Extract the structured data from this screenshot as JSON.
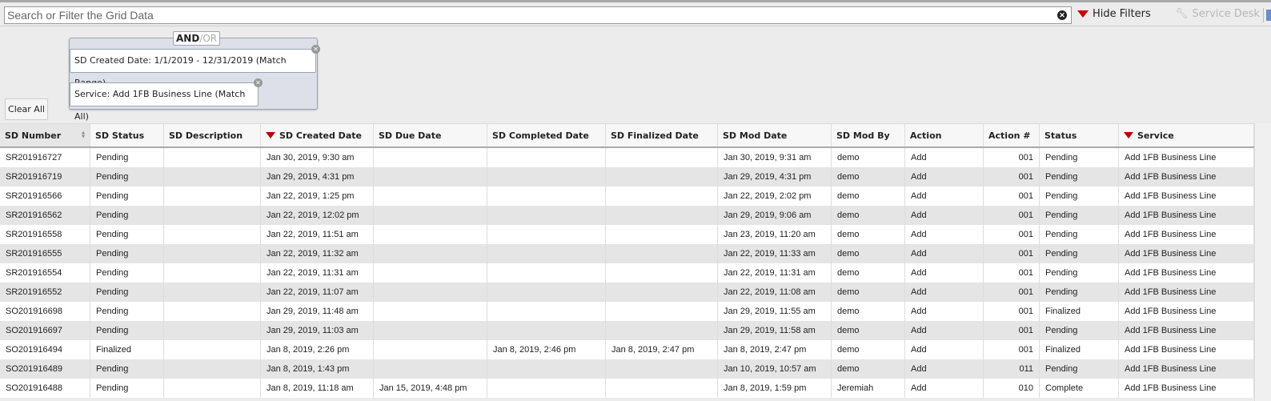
{
  "toolbar": {
    "search_placeholder": "Search or Filter the Grid Data",
    "search_value": "",
    "hide_filters": "Hide Filters",
    "service_desk": "Service Desk"
  },
  "filters": {
    "and": "AND",
    "slash": "/",
    "or": "OR",
    "chips": [
      "SD Created Date: 1/1/2019 - 12/31/2019 (Match Range)",
      "Service: Add 1FB Business Line (Match All)"
    ],
    "clear_all": "Clear All"
  },
  "colors": {
    "filter_funnel": "#bb0000",
    "row_alt": "#e5e5e5"
  },
  "grid": {
    "columns": [
      "SD Number",
      "SD Status",
      "SD Description",
      "SD Created Date",
      "SD Due Date",
      "SD Completed Date",
      "SD Finalized Date",
      "SD Mod Date",
      "SD Mod By",
      "Action",
      "Action #",
      "Status",
      "Service"
    ],
    "filtered_columns": [
      3,
      12
    ],
    "sorted_column": 0,
    "rows": [
      [
        "SR201916727",
        "Pending",
        "",
        "Jan 30, 2019, 9:30 am",
        "",
        "",
        "",
        "Jan 30, 2019, 9:31 am",
        "demo",
        "Add",
        "001",
        "Pending",
        "Add 1FB Business Line"
      ],
      [
        "SR201916719",
        "Pending",
        "",
        "Jan 29, 2019, 4:31 pm",
        "",
        "",
        "",
        "Jan 29, 2019, 4:31 pm",
        "demo",
        "Add",
        "001",
        "Pending",
        "Add 1FB Business Line"
      ],
      [
        "SR201916566",
        "Pending",
        "",
        "Jan 22, 2019, 1:25 pm",
        "",
        "",
        "",
        "Jan 22, 2019, 2:02 pm",
        "demo",
        "Add",
        "001",
        "Pending",
        "Add 1FB Business Line"
      ],
      [
        "SR201916562",
        "Pending",
        "",
        "Jan 22, 2019, 12:02 pm",
        "",
        "",
        "",
        "Jan 29, 2019, 9:06 am",
        "demo",
        "Add",
        "001",
        "Pending",
        "Add 1FB Business Line"
      ],
      [
        "SR201916558",
        "Pending",
        "",
        "Jan 22, 2019, 11:51 am",
        "",
        "",
        "",
        "Jan 23, 2019, 11:20 am",
        "demo",
        "Add",
        "001",
        "Pending",
        "Add 1FB Business Line"
      ],
      [
        "SR201916555",
        "Pending",
        "",
        "Jan 22, 2019, 11:32 am",
        "",
        "",
        "",
        "Jan 22, 2019, 11:33 am",
        "demo",
        "Add",
        "001",
        "Pending",
        "Add 1FB Business Line"
      ],
      [
        "SR201916554",
        "Pending",
        "",
        "Jan 22, 2019, 11:31 am",
        "",
        "",
        "",
        "Jan 22, 2019, 11:31 am",
        "demo",
        "Add",
        "001",
        "Pending",
        "Add 1FB Business Line"
      ],
      [
        "SR201916552",
        "Pending",
        "",
        "Jan 22, 2019, 11:07 am",
        "",
        "",
        "",
        "Jan 22, 2019, 11:08 am",
        "demo",
        "Add",
        "001",
        "Pending",
        "Add 1FB Business Line"
      ],
      [
        "SO201916698",
        "Pending",
        "",
        "Jan 29, 2019, 11:48 am",
        "",
        "",
        "",
        "Jan 29, 2019, 11:55 am",
        "demo",
        "Add",
        "001",
        "Finalized",
        "Add 1FB Business Line"
      ],
      [
        "SO201916697",
        "Pending",
        "",
        "Jan 29, 2019, 11:03 am",
        "",
        "",
        "",
        "Jan 29, 2019, 11:58 am",
        "demo",
        "Add",
        "001",
        "Pending",
        "Add 1FB Business Line"
      ],
      [
        "SO201916494",
        "Finalized",
        "",
        "Jan 8, 2019, 2:26 pm",
        "",
        "Jan 8, 2019, 2:46 pm",
        "Jan 8, 2019, 2:47 pm",
        "Jan 8, 2019, 2:47 pm",
        "demo",
        "Add",
        "001",
        "Finalized",
        "Add 1FB Business Line"
      ],
      [
        "SO201916489",
        "Pending",
        "",
        "Jan 8, 2019, 1:43 pm",
        "",
        "",
        "",
        "Jan 10, 2019, 10:57 am",
        "demo",
        "Add",
        "011",
        "Pending",
        "Add 1FB Business Line"
      ],
      [
        "SO201916488",
        "Pending",
        "",
        "Jan 8, 2019, 11:18 am",
        "Jan 15, 2019, 4:48 pm",
        "",
        "",
        "Jan 8, 2019, 1:59 pm",
        "Jeremiah",
        "Add",
        "010",
        "Complete",
        "Add 1FB Business Line"
      ]
    ]
  }
}
